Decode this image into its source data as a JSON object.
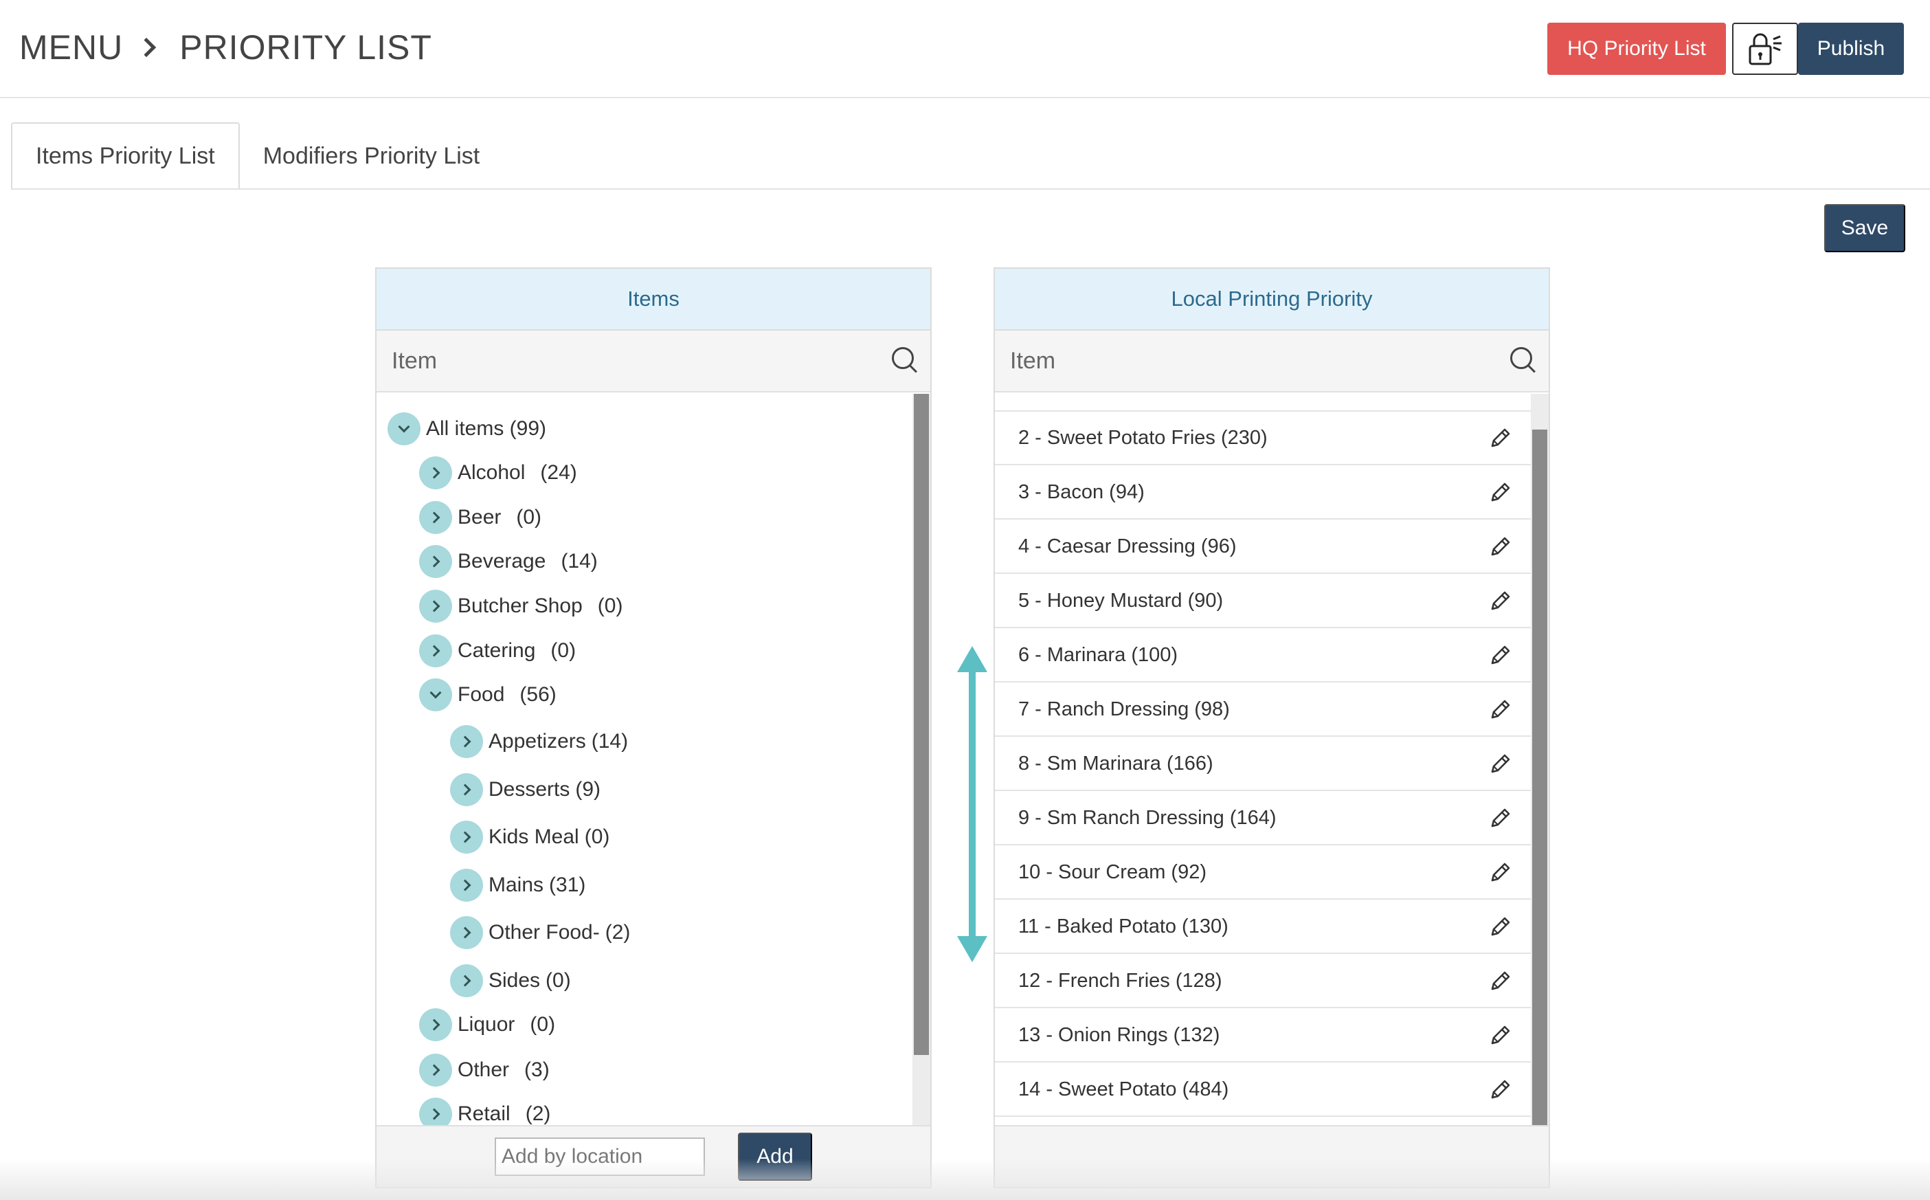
{
  "header": {
    "breadcrumb": [
      "MENU",
      "PRIORITY LIST"
    ],
    "hq_button": "HQ Priority List",
    "lock_icon": "lock-icon",
    "publish_button": "Publish"
  },
  "tabs": [
    {
      "label": "Items Priority List",
      "active": true
    },
    {
      "label": "Modifiers Priority List",
      "active": false
    }
  ],
  "save_button": "Save",
  "items_panel": {
    "title": "Items",
    "search_placeholder": "Item",
    "tree": [
      {
        "label": "All items (99)",
        "count": "",
        "level": 0,
        "open": true
      },
      {
        "label": "Alcohol",
        "count": "(24)",
        "level": 1,
        "open": false
      },
      {
        "label": "Beer",
        "count": "(0)",
        "level": 1,
        "open": false
      },
      {
        "label": "Beverage",
        "count": "(14)",
        "level": 1,
        "open": false
      },
      {
        "label": "Butcher Shop",
        "count": "(0)",
        "level": 1,
        "open": false
      },
      {
        "label": "Catering",
        "count": "(0)",
        "level": 1,
        "open": false
      },
      {
        "label": "Food",
        "count": "(56)",
        "level": 1,
        "open": true
      },
      {
        "label": "Appetizers",
        "count": "(14)",
        "level": 2,
        "open": false
      },
      {
        "label": "Desserts",
        "count": "(9)",
        "level": 2,
        "open": false
      },
      {
        "label": "Kids Meal",
        "count": "(0)",
        "level": 2,
        "open": false
      },
      {
        "label": "Mains",
        "count": "(31)",
        "level": 2,
        "open": false
      },
      {
        "label": "Other Food-",
        "count": "(2)",
        "level": 2,
        "open": false
      },
      {
        "label": "Sides",
        "count": "(0)",
        "level": 2,
        "open": false
      },
      {
        "label": "Liquor",
        "count": "(0)",
        "level": 1,
        "open": false
      },
      {
        "label": "Other",
        "count": "(3)",
        "level": 1,
        "open": false
      },
      {
        "label": "Retail",
        "count": "(2)",
        "level": 1,
        "open": false
      }
    ],
    "location_placeholder": "Add by location",
    "add_button": "Add"
  },
  "priority_panel": {
    "title": "Local Printing Priority",
    "search_placeholder": "Item",
    "rows": [
      "2 - Sweet Potato Fries (230)",
      "3 - Bacon (94)",
      "4 - Caesar Dressing (96)",
      "5 - Honey Mustard (90)",
      "6 - Marinara (100)",
      "7 - Ranch Dressing (98)",
      "8 - Sm Marinara (166)",
      "9 - Sm Ranch Dressing (164)",
      "10 - Sour Cream (92)",
      "11 - Baked Potato (130)",
      "12 - French Fries (128)",
      "13 - Onion Rings (132)",
      "14 - Sweet Potato (484)"
    ]
  },
  "colors": {
    "accent_red": "#e25553",
    "primary_navy": "#2e4a67",
    "panel_header": "#e3f2fa",
    "teal_arrow": "#5bbfc4",
    "toggle_bg": "#a8d9dc"
  }
}
